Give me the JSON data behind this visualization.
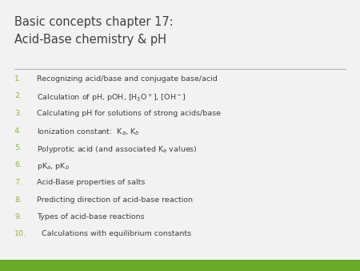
{
  "title_line1": "Basic concepts chapter 17:",
  "title_line2": "Acid-Base chemistry & pH",
  "bg_color": "#f2f2f2",
  "title_color": "#404040",
  "number_color": "#8db92e",
  "text_color": "#404040",
  "divider_color": "#b0b0b0",
  "bottom_bar_color": "#6aaa2a",
  "title_fontsize": 10.5,
  "item_fontsize": 6.8,
  "items_plain": [
    "Recognizing acid/base and conjugate base/acid",
    "Calculating pH for solutions of strong acids/base",
    "Acid-Base properties of salts",
    "Predicting direction of acid-base reaction",
    "Types of acid-base reactions",
    "Calculations with equilibrium constants"
  ],
  "item2": "Calculation of pH, pOH, [H",
  "item2_sub": "3",
  "item2_mid": "O",
  "item2_sup": "+",
  "item2_end": "], [OH",
  "item2_sup2": "−",
  "item2_close": "]",
  "item4_pre": "Ionization constant:  K",
  "item4_sub_a": "a",
  "item4_mid": ", K",
  "item4_sub_b": "b",
  "item5_pre": "Polyprotic acid (and associated K",
  "item5_sub": "a",
  "item5_end": " values)",
  "item6_pre": "pK",
  "item6_sub_a": "a",
  "item6_mid": ", pK",
  "item6_sub_b": "b"
}
